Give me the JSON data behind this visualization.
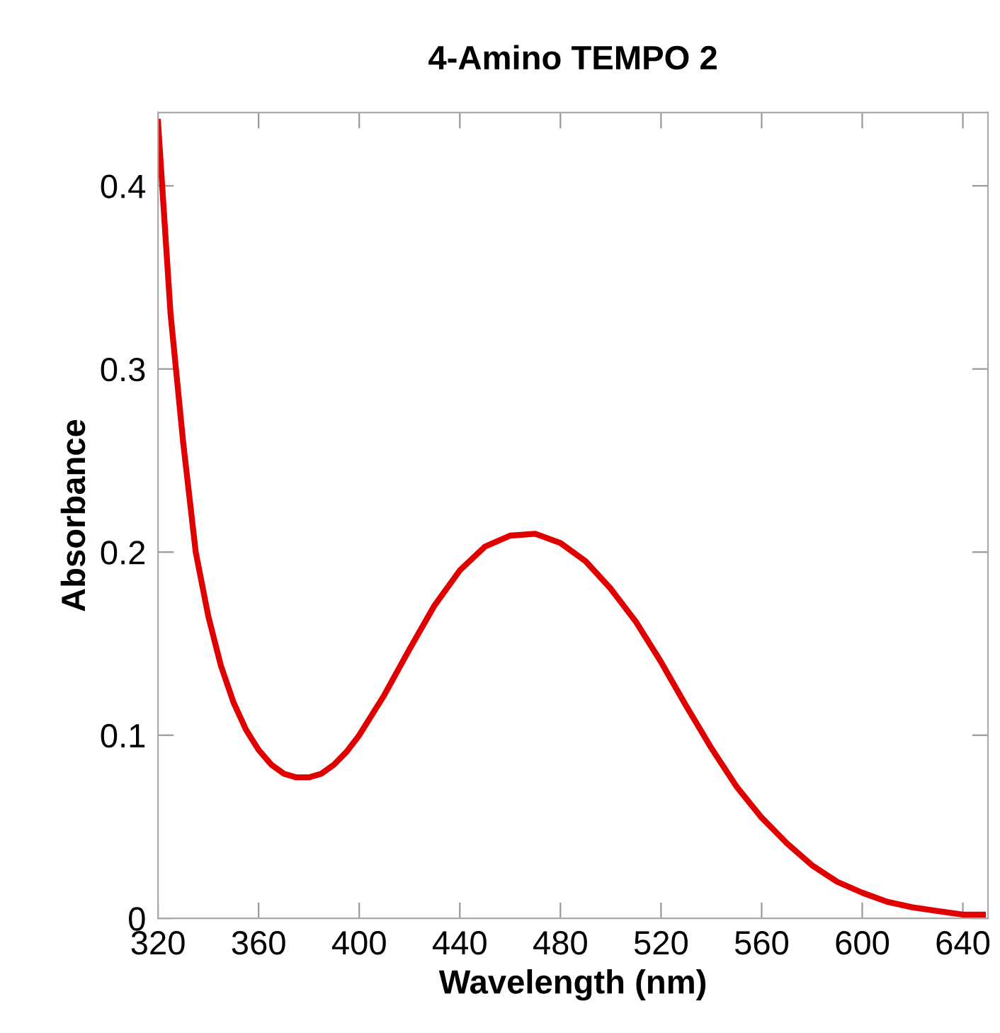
{
  "chart_data": {
    "type": "line",
    "title": "4-Amino TEMPO 2",
    "xlabel": "Wavelength (nm)",
    "ylabel": "Absorbance",
    "x": [
      320,
      325,
      330,
      335,
      340,
      345,
      350,
      355,
      360,
      365,
      370,
      375,
      380,
      385,
      390,
      395,
      400,
      410,
      420,
      430,
      440,
      450,
      460,
      470,
      480,
      490,
      500,
      510,
      520,
      530,
      540,
      550,
      560,
      570,
      580,
      590,
      600,
      610,
      620,
      630,
      640,
      648
    ],
    "series": [
      {
        "color": "#e00000",
        "values": [
          0.435,
          0.33,
          0.26,
          0.2,
          0.165,
          0.138,
          0.118,
          0.103,
          0.092,
          0.084,
          0.079,
          0.077,
          0.077,
          0.079,
          0.084,
          0.091,
          0.1,
          0.122,
          0.147,
          0.171,
          0.19,
          0.203,
          0.209,
          0.21,
          0.205,
          0.195,
          0.18,
          0.162,
          0.14,
          0.116,
          0.093,
          0.072,
          0.055,
          0.041,
          0.029,
          0.02,
          0.014,
          0.009,
          0.006,
          0.004,
          0.002,
          0.002
        ]
      }
    ],
    "xlim": [
      320,
      650
    ],
    "ylim": [
      0,
      0.44
    ],
    "xticks": [
      320,
      360,
      400,
      440,
      480,
      520,
      560,
      600,
      640
    ],
    "yticks": [
      0,
      0.1,
      0.2,
      0.3,
      0.4
    ],
    "grid": false,
    "legend": false,
    "marker": "none",
    "line_style": "solid"
  }
}
